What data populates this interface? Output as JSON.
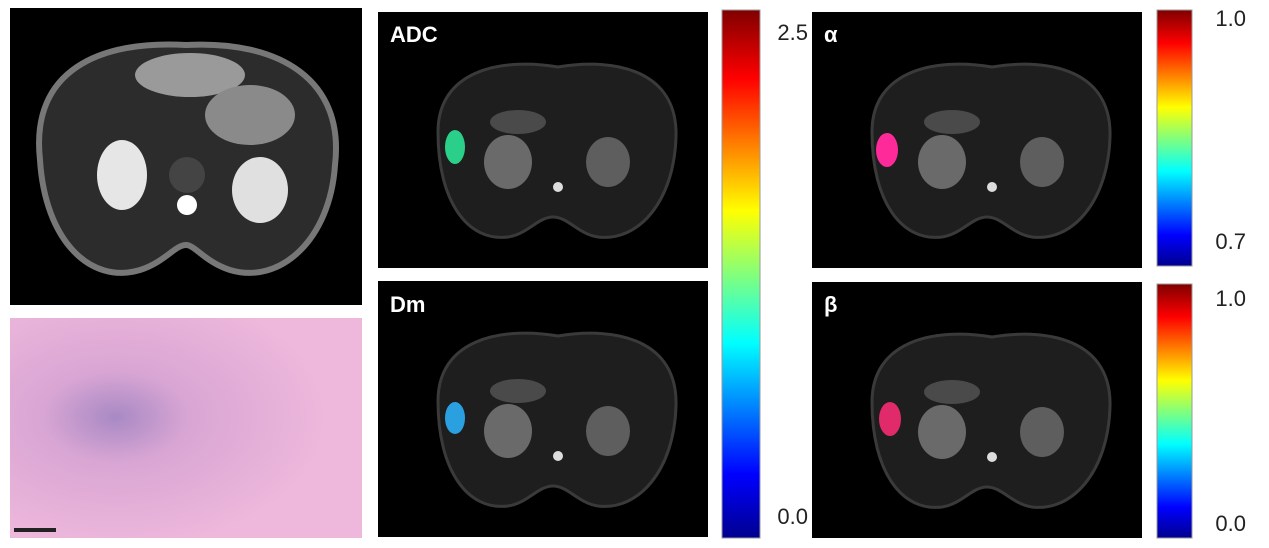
{
  "panels": [
    {
      "label": "ADC"
    },
    {
      "label": "Dm"
    },
    {
      "label": "α"
    },
    {
      "label": "β"
    }
  ],
  "colorbars": [
    {
      "max": "2.5",
      "min": "0.0"
    },
    {
      "max": "1.0",
      "min": "0.7"
    },
    {
      "max": "1.0",
      "min": "0.0"
    }
  ]
}
